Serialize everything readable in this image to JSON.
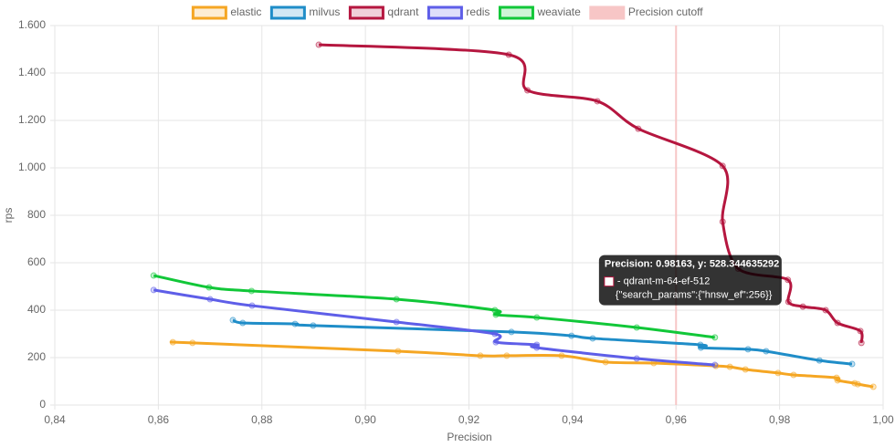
{
  "chart_data": {
    "type": "line",
    "xlabel": "Precision",
    "ylabel": "rps",
    "xlim": [
      0.84,
      1.0
    ],
    "xticks": [
      {
        "value": 0.84,
        "label": "0,84"
      },
      {
        "value": 0.86,
        "label": "0,86"
      },
      {
        "value": 0.88,
        "label": "0,88"
      },
      {
        "value": 0.9,
        "label": "0,90"
      },
      {
        "value": 0.92,
        "label": "0,92"
      },
      {
        "value": 0.94,
        "label": "0,94"
      },
      {
        "value": 0.96,
        "label": "0,96"
      },
      {
        "value": 0.98,
        "label": "0,98"
      },
      {
        "value": 1.0,
        "label": "1,00"
      }
    ],
    "ylim": [
      0,
      1600
    ],
    "yticks": [
      0,
      200,
      400,
      600,
      800,
      {
        "value": 1000,
        "label": "1.000"
      },
      {
        "value": 1200,
        "label": "1.200"
      },
      {
        "value": 1400,
        "label": "1.400"
      },
      {
        "value": 1600,
        "label": "1.600"
      }
    ],
    "grid": true,
    "legend": "top",
    "series": [
      {
        "name": "elastic",
        "color": "#f5a623",
        "x": [
          0.8628,
          0.8666,
          0.9063,
          0.9222,
          0.9273,
          0.9379,
          0.9464,
          0.9557,
          0.9677,
          0.9704,
          0.9734,
          0.9797,
          0.9827,
          0.991,
          0.9912,
          0.9945,
          0.9951,
          0.9981
        ],
        "values": [
          265,
          262,
          227,
          208,
          208,
          208,
          181,
          177,
          165,
          161,
          150,
          135,
          127,
          115,
          104,
          92,
          88,
          77
        ]
      },
      {
        "name": "milvus",
        "color": "#1f8dc8",
        "x": [
          0.8744,
          0.8763,
          0.8864,
          0.8899,
          0.9282,
          0.9398,
          0.9439,
          0.9647,
          0.9648,
          0.9739,
          0.9774,
          0.9877,
          0.994
        ],
        "values": [
          358,
          346,
          342,
          335,
          308,
          292,
          281,
          254,
          242,
          235,
          227,
          188,
          173
        ]
      },
      {
        "name": "qdrant",
        "color": "#b5163f",
        "x": [
          0.891,
          0.9277,
          0.9313,
          0.9448,
          0.9527,
          0.969,
          0.969,
          0.972,
          0.9816,
          0.9817,
          0.9845,
          0.9889,
          0.9912,
          0.9956,
          0.9958
        ],
        "values": [
          1519,
          1477,
          1327,
          1281,
          1165,
          1008,
          773,
          575,
          528,
          435,
          415,
          400,
          346,
          312,
          262
        ]
      },
      {
        "name": "redis",
        "color": "#5e5ee8",
        "x": [
          0.8591,
          0.87,
          0.8781,
          0.906,
          0.925,
          0.9252,
          0.9331,
          0.9331,
          0.9524,
          0.9675
        ],
        "values": [
          485,
          446,
          419,
          350,
          300,
          265,
          254,
          242,
          196,
          169
        ]
      },
      {
        "name": "weaviate",
        "color": "#11c738",
        "x": [
          0.8591,
          0.8698,
          0.878,
          0.906,
          0.925,
          0.9252,
          0.9331,
          0.9524,
          0.9675
        ],
        "values": [
          546,
          496,
          481,
          446,
          400,
          381,
          369,
          327,
          285
        ]
      }
    ],
    "cutoff": {
      "name": "Precision cutoff",
      "x": 0.96,
      "color": "#f7c6c6"
    },
    "tooltip": {
      "title": "Precision: 0.98163, y: 528.344635292",
      "lines": [
        "- qdrant-m-64-ef-512",
        "{\"search_params\":{\"hnsw_ef\":256}}"
      ]
    }
  }
}
